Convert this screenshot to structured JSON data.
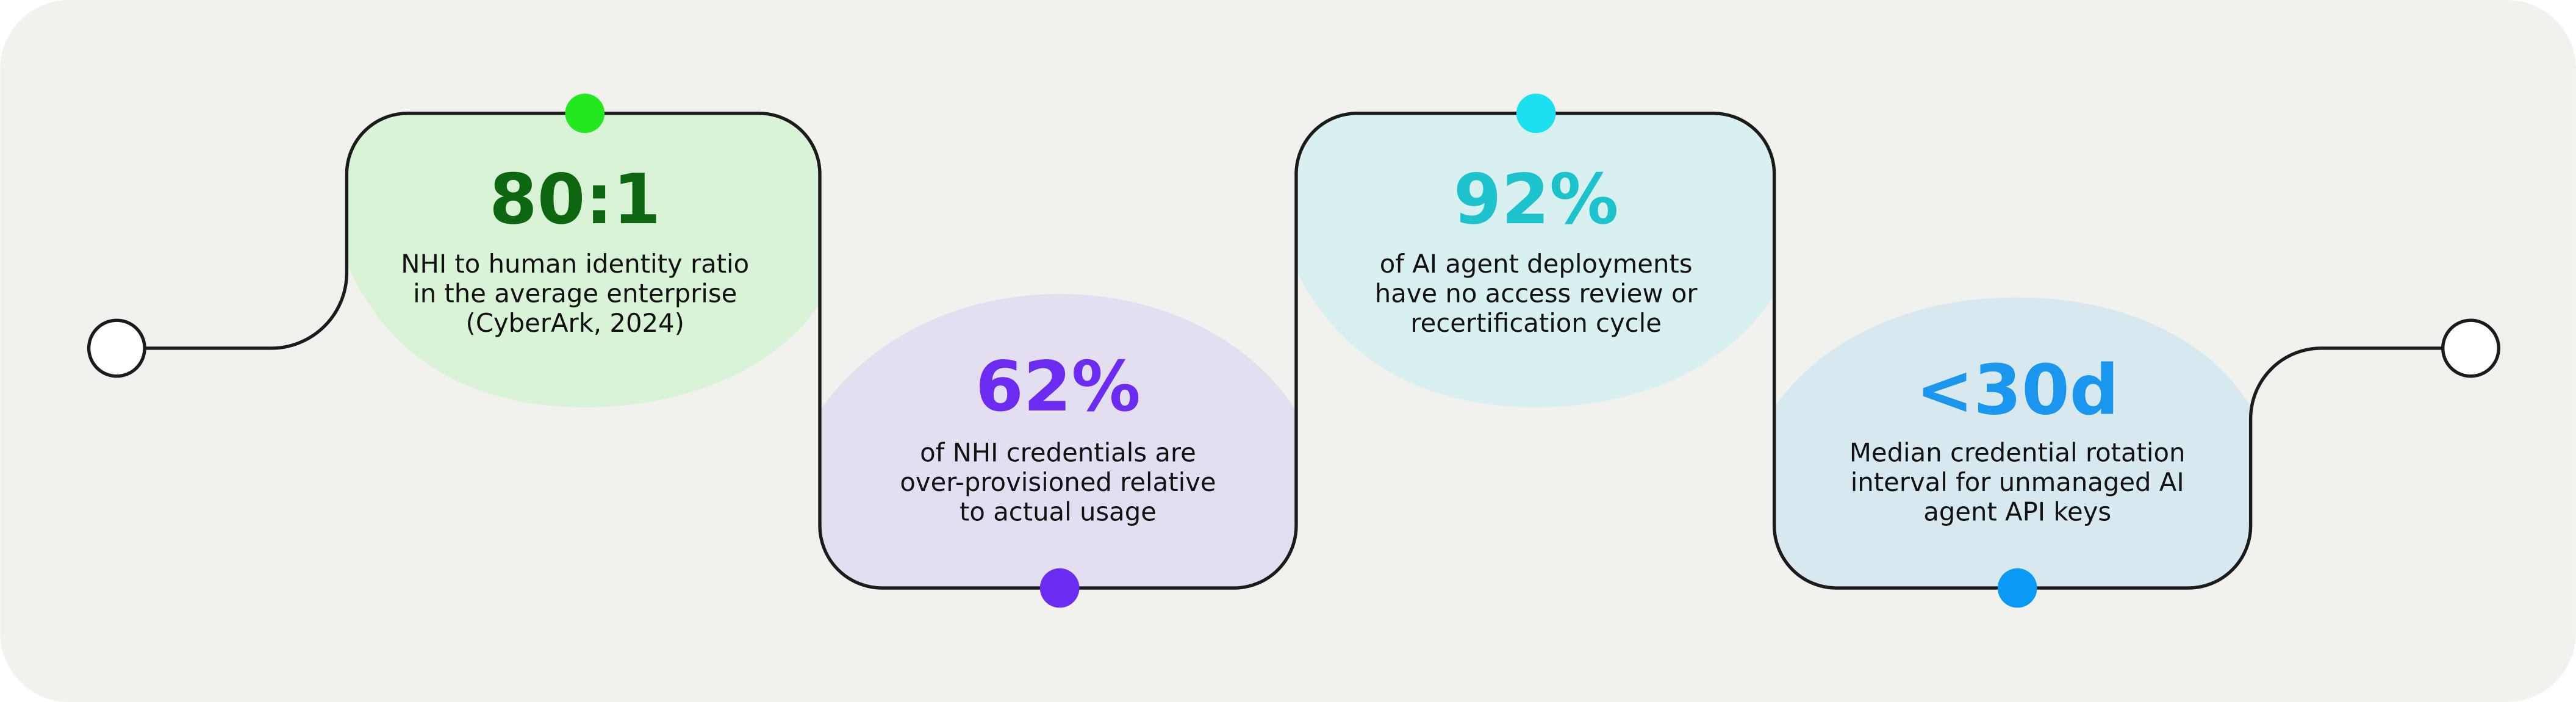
{
  "stats": [
    {
      "value": "80:1",
      "description": [
        "NHI to human identity ratio",
        "in the average enterprise",
        "(CyberArk, 2024)"
      ]
    },
    {
      "value": "62%",
      "description": [
        "of NHI credentials are",
        "over-provisioned relative",
        "to actual usage"
      ]
    },
    {
      "value": "92%",
      "description": [
        "of AI agent deployments",
        "have no access review or",
        "recertification cycle"
      ]
    },
    {
      "value": "<30d",
      "description": [
        "Median credential rotation",
        "interval for unmanaged AI",
        "agent API keys"
      ]
    }
  ]
}
